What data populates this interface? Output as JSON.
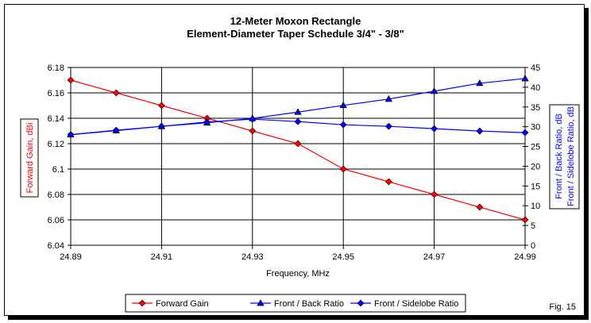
{
  "chart_data": {
    "type": "line",
    "title": "12-Meter Moxon Rectangle",
    "subtitle": "Element-Diameter Taper Schedule 3/4\" - 3/8\"",
    "xlabel": "Frequency, MHz",
    "ylabel": "Forward Gain, dBi",
    "y2label_lines": [
      "Front / Back Ratio,  dB",
      "Front / Sidelobe Ratio,  dB"
    ],
    "x": [
      24.89,
      24.9,
      24.91,
      24.92,
      24.93,
      24.94,
      24.95,
      24.96,
      24.97,
      24.98,
      24.99
    ],
    "xlim": [
      24.89,
      24.99
    ],
    "x_ticks": [
      "24.89",
      "24.91",
      "24.93",
      "24.95",
      "24.97",
      "24.99"
    ],
    "x_tick_values": [
      24.89,
      24.91,
      24.93,
      24.95,
      24.97,
      24.99
    ],
    "ylim": [
      6.04,
      6.18
    ],
    "y_ticks": [
      "6.04",
      "6.06",
      "6.08",
      "6.1",
      "6.12",
      "6.14",
      "6.16",
      "6.18"
    ],
    "y_tick_values": [
      6.04,
      6.06,
      6.08,
      6.1,
      6.12,
      6.14,
      6.16,
      6.18
    ],
    "y2lim": [
      0,
      45
    ],
    "y2_ticks": [
      "0",
      "5",
      "10",
      "15",
      "20",
      "25",
      "30",
      "35",
      "40",
      "45"
    ],
    "y2_tick_values": [
      0,
      5,
      10,
      15,
      20,
      25,
      30,
      35,
      40,
      45
    ],
    "grid": true,
    "legend_position": "bottom",
    "series": [
      {
        "name": "Forward Gain",
        "axis": "left",
        "color": "#ff0000",
        "marker": "diamond",
        "values": [
          6.17,
          6.16,
          6.15,
          6.14,
          6.13,
          6.12,
          6.1,
          6.09,
          6.08,
          6.07,
          6.06
        ]
      },
      {
        "name": "Front / Back Ratio",
        "axis": "right",
        "color": "#0000ff",
        "marker": "triangle",
        "values": [
          28.0,
          29.0,
          30.1,
          31.0,
          32.1,
          33.7,
          35.4,
          37.0,
          39.0,
          41.0,
          42.2
        ]
      },
      {
        "name": "Front / Sidelobe Ratio",
        "axis": "right",
        "color": "#0000ff",
        "marker": "diamond",
        "values": [
          28.0,
          29.1,
          30.1,
          31.2,
          31.9,
          31.3,
          30.5,
          30.1,
          29.5,
          28.9,
          28.5
        ]
      }
    ],
    "annotation": "Fig. 15"
  },
  "colors": {
    "left_axis_label": "#ff0000",
    "right_axis_label": "#0000ff"
  }
}
